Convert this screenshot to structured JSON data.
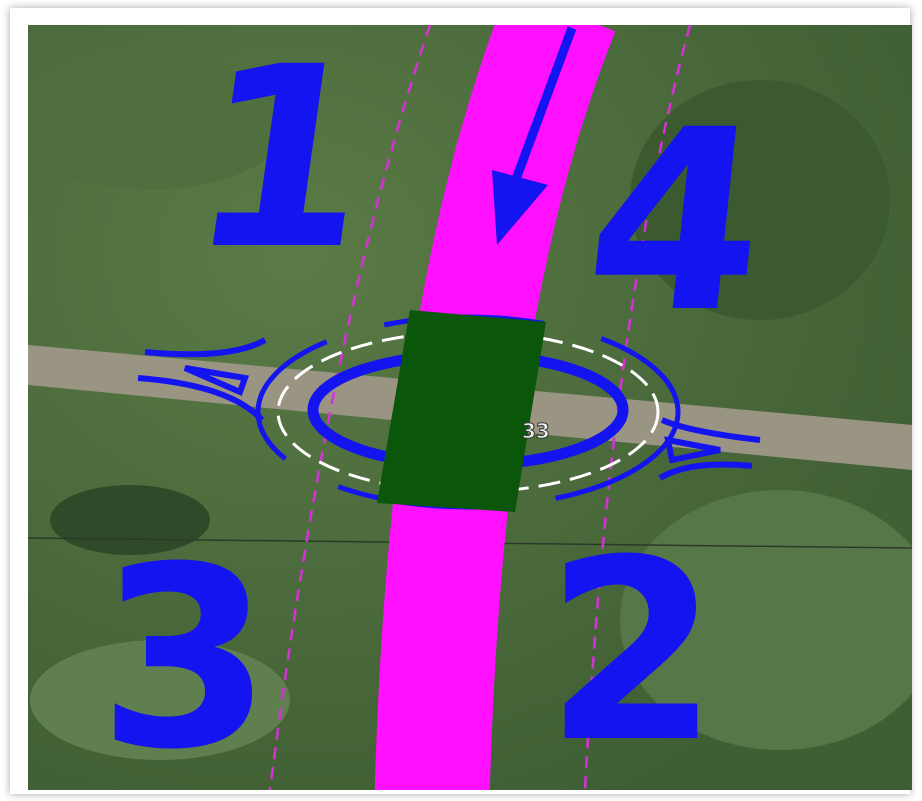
{
  "quadrant_labels": [
    "1",
    "4",
    "3",
    "2"
  ],
  "road_number": "33"
}
